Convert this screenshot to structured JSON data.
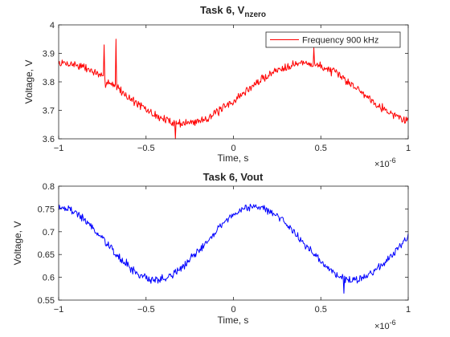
{
  "chart_data": [
    {
      "type": "line",
      "title_main": "Task 6, V",
      "title_sub": "nzero",
      "xlabel": "Time, s",
      "ylabel": "Voltage, V",
      "xlim": [
        -1,
        1
      ],
      "ylim": [
        3.6,
        4.0
      ],
      "x_exponent_label": "×10",
      "x_exponent": "-6",
      "xticks": [
        -1,
        -0.5,
        0,
        0.5,
        1
      ],
      "xtick_labels": [
        "−1",
        "−0.5",
        "0",
        "0.5",
        "1"
      ],
      "yticks": [
        3.6,
        3.7,
        3.8,
        3.9,
        4.0
      ],
      "ytick_labels": [
        "3.6",
        "3.7",
        "3.8",
        "3.9",
        "4"
      ],
      "legend": {
        "entries": [
          "Frequency 900 kHz"
        ],
        "placement": "top-right"
      },
      "grid": false,
      "series": [
        {
          "name": "Frequency 900 kHz",
          "color": "#ff0000",
          "model": "sinusoid with noise",
          "mean": 3.76,
          "amplitude": 0.105,
          "period": 1.37,
          "peak_x": 0.4,
          "noise": 0.012,
          "spikes": [
            {
              "x": -0.74,
              "y": 3.93
            },
            {
              "x": -0.73,
              "y": 3.78
            },
            {
              "x": -0.67,
              "y": 3.95
            },
            {
              "x": -0.66,
              "y": 3.79
            },
            {
              "x": -0.33,
              "y": 3.6
            },
            {
              "x": 0.46,
              "y": 3.92
            }
          ]
        }
      ]
    },
    {
      "type": "line",
      "title": "Task 6, Vout",
      "xlabel": "Time, s",
      "ylabel": "Voltage, V",
      "xlim": [
        -1,
        1
      ],
      "ylim": [
        0.55,
        0.8
      ],
      "x_exponent_label": "×10",
      "x_exponent": "-6",
      "xticks": [
        -1,
        -0.5,
        0,
        0.5,
        1
      ],
      "xtick_labels": [
        "−1",
        "−0.5",
        "0",
        "0.5",
        "1"
      ],
      "yticks": [
        0.55,
        0.6,
        0.65,
        0.7,
        0.75,
        0.8
      ],
      "ytick_labels": [
        "0.55",
        "0.6",
        "0.65",
        "0.7",
        "0.75",
        "0.8"
      ],
      "grid": false,
      "series": [
        {
          "color": "#0000ff",
          "model": "sinusoid with noise",
          "mean": 0.675,
          "amplitude": 0.08,
          "period": 1.13,
          "peak_x": 0.12,
          "noise": 0.007,
          "spikes": [
            {
              "x": -0.61,
              "y": 0.64
            },
            {
              "x": 0.63,
              "y": 0.565
            }
          ]
        }
      ]
    }
  ]
}
